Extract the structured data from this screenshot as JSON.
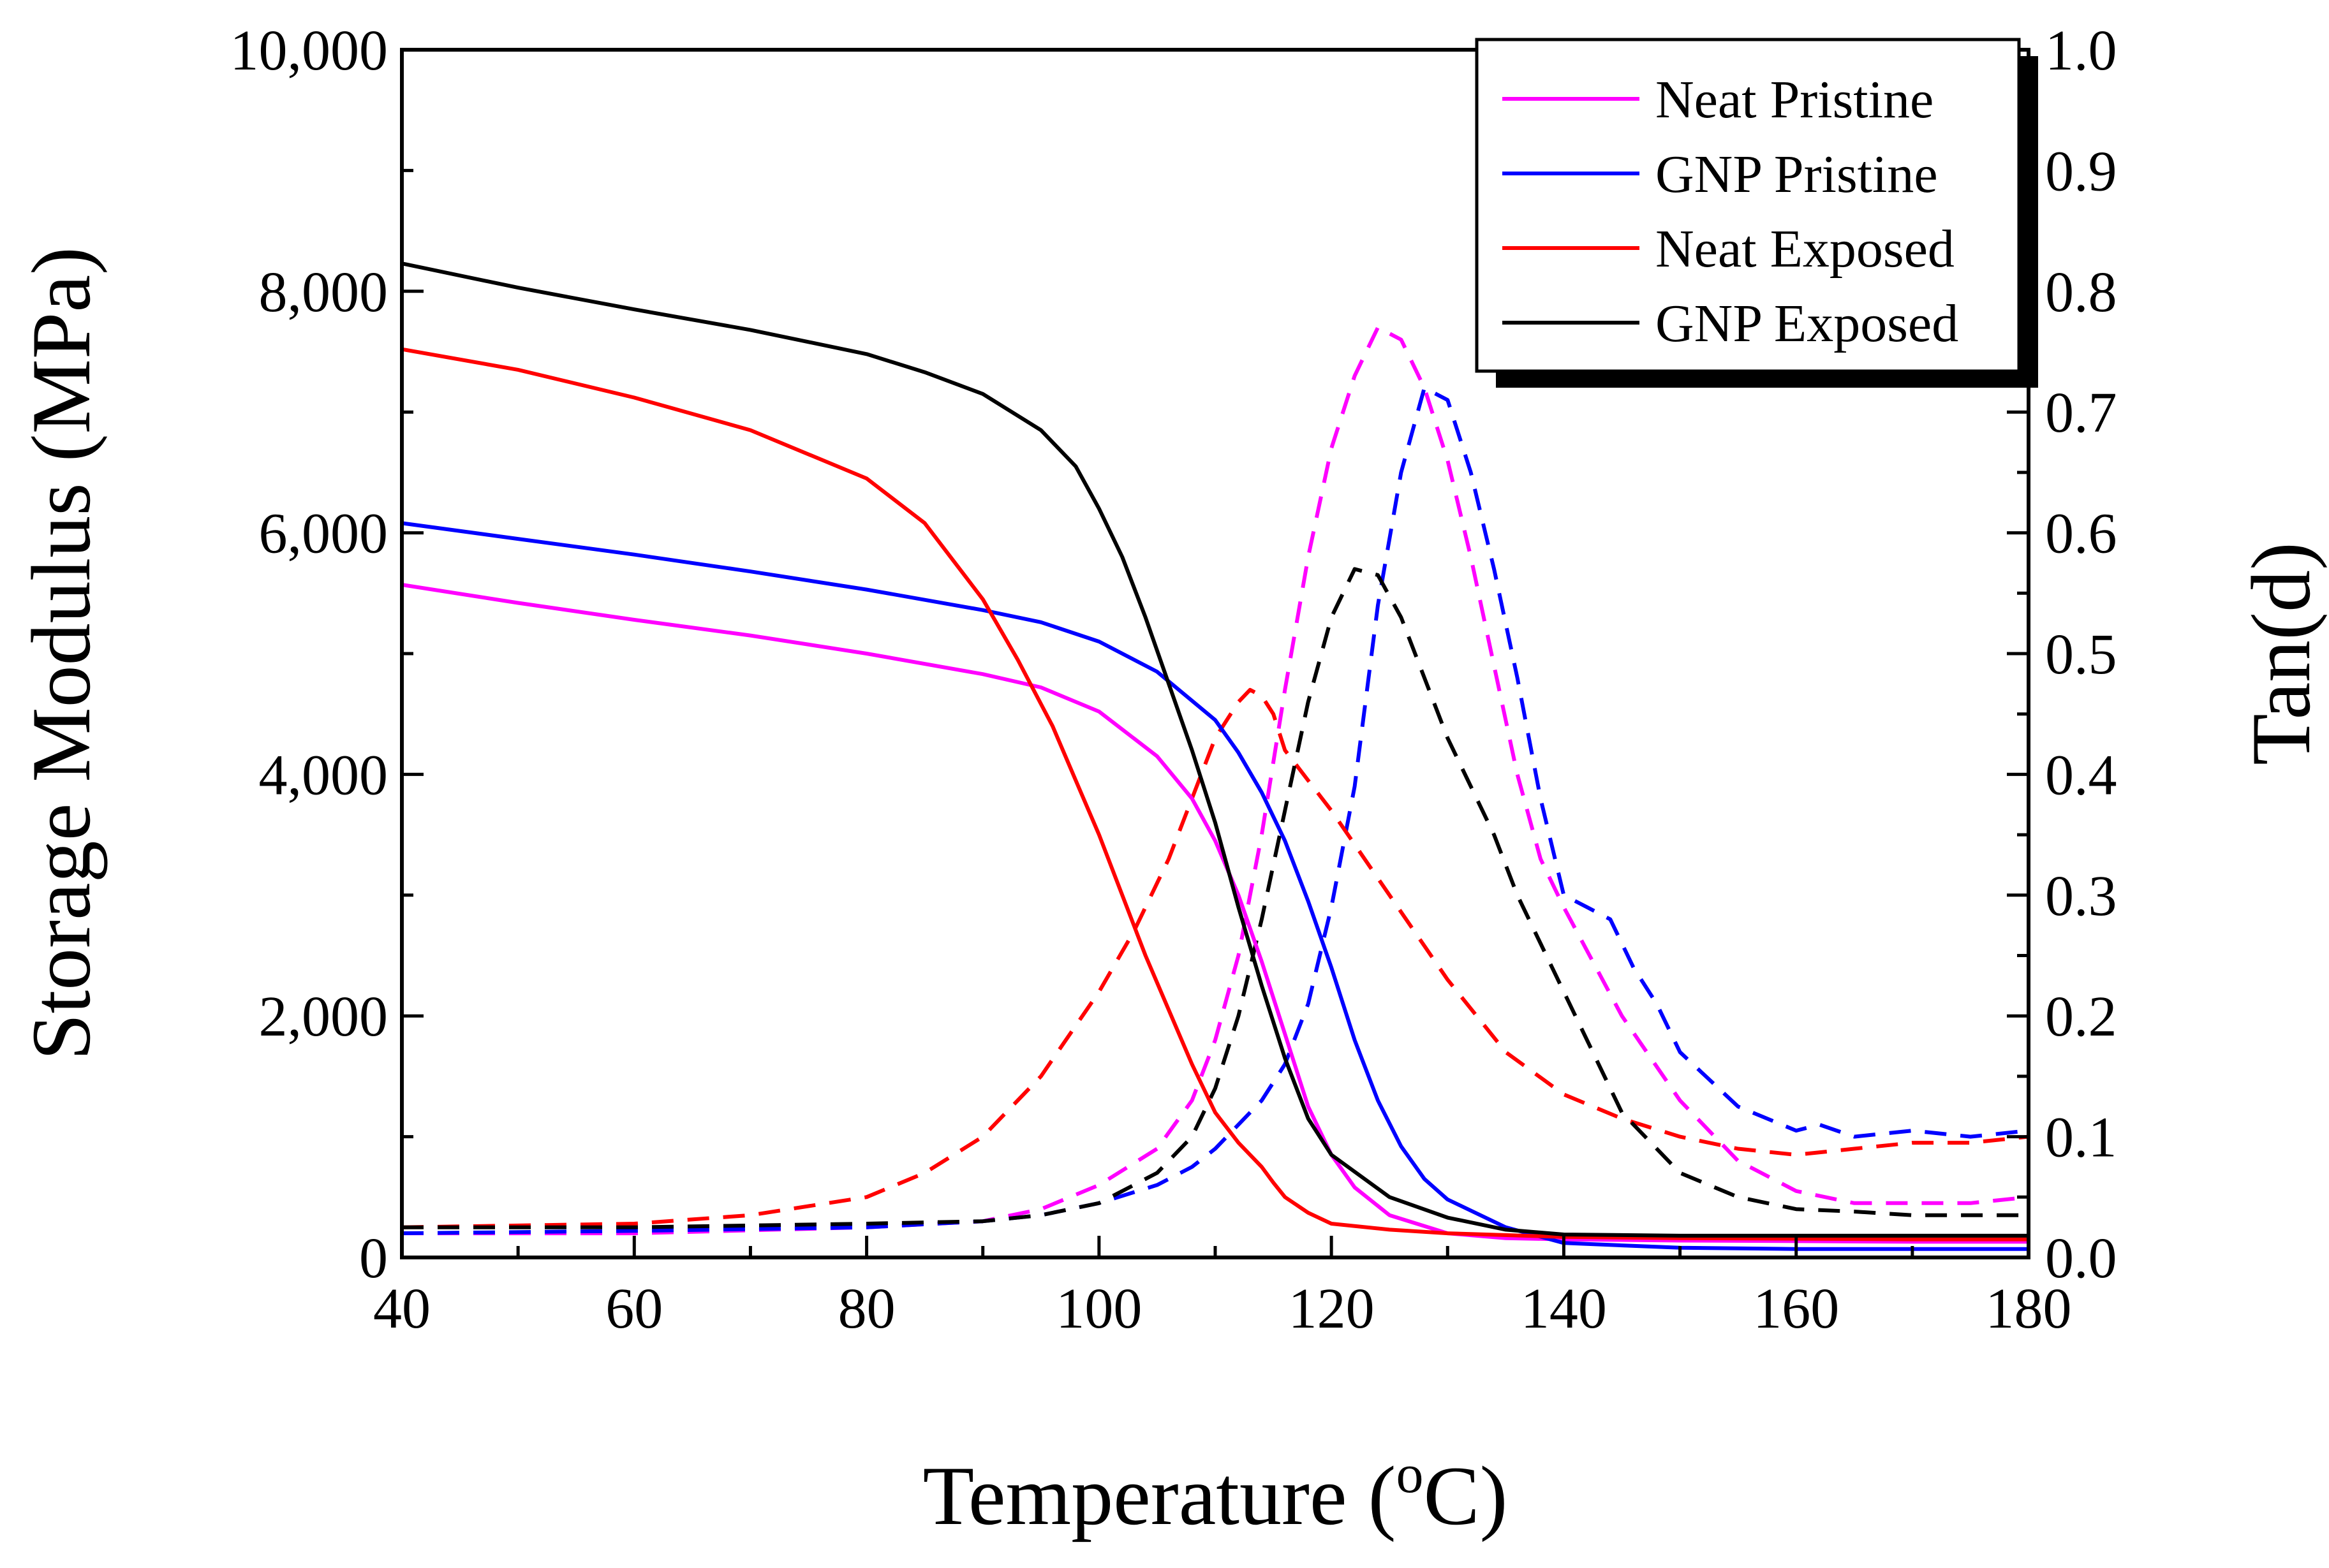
{
  "chart_data": {
    "type": "line",
    "xlabel": "Temperature (",
    "xlabel_sup": "o",
    "xlabel_end": "C)",
    "ylabel_left": "Storage Modulus (MPa)",
    "ylabel_right": "Tan(d)",
    "xlim": [
      40,
      180
    ],
    "ylim_left": [
      0,
      10000
    ],
    "ylim_right": [
      0,
      1.0
    ],
    "x_ticks": [
      40,
      60,
      80,
      100,
      120,
      140,
      160,
      180
    ],
    "x_tick_labels": [
      "40",
      "60",
      "80",
      "100",
      "120",
      "140",
      "160",
      "180"
    ],
    "y_left_ticks": [
      0,
      2000,
      4000,
      6000,
      8000,
      10000
    ],
    "y_left_tick_labels": [
      "0",
      "2,000",
      "4,000",
      "6,000",
      "8,000",
      "10,000"
    ],
    "y_right_ticks": [
      0,
      0.1,
      0.2,
      0.3,
      0.4,
      0.5,
      0.6,
      0.7,
      0.8,
      0.9,
      1.0
    ],
    "y_right_tick_labels": [
      "0.0",
      "0.1",
      "0.2",
      "0.3",
      "0.4",
      "0.5",
      "0.6",
      "0.7",
      "0.8",
      "0.9",
      "1.0"
    ],
    "legend_position": "top-right",
    "series": [
      {
        "name": "Neat Pristine",
        "color": "#ff00ff",
        "storage_modulus": {
          "x": [
            40,
            50,
            60,
            70,
            80,
            90,
            95,
            100,
            105,
            108,
            110,
            112,
            114,
            116,
            118,
            120,
            122,
            125,
            130,
            135,
            140,
            150,
            160,
            170,
            180
          ],
          "y": [
            5570,
            5420,
            5280,
            5150,
            5000,
            4830,
            4720,
            4520,
            4150,
            3800,
            3450,
            3000,
            2450,
            1850,
            1250,
            850,
            580,
            350,
            200,
            160,
            150,
            140,
            135,
            130,
            130
          ]
        },
        "tan_delta": {
          "x": [
            40,
            60,
            80,
            90,
            95,
            100,
            105,
            108,
            110,
            112,
            114,
            116,
            118,
            120,
            122,
            124,
            126,
            128,
            130,
            132,
            134,
            136,
            138,
            140,
            145,
            150,
            155,
            160,
            165,
            170,
            175,
            180
          ],
          "y": [
            0.02,
            0.02,
            0.025,
            0.03,
            0.04,
            0.06,
            0.09,
            0.13,
            0.18,
            0.25,
            0.35,
            0.47,
            0.58,
            0.67,
            0.73,
            0.77,
            0.76,
            0.72,
            0.66,
            0.58,
            0.49,
            0.4,
            0.33,
            0.29,
            0.2,
            0.13,
            0.08,
            0.055,
            0.045,
            0.045,
            0.045,
            0.05
          ]
        }
      },
      {
        "name": "GNP Pristine",
        "color": "#0000ff",
        "storage_modulus": {
          "x": [
            40,
            50,
            60,
            70,
            80,
            90,
            95,
            100,
            105,
            110,
            112,
            114,
            116,
            118,
            120,
            122,
            124,
            126,
            128,
            130,
            135,
            140,
            150,
            160,
            170,
            180
          ],
          "y": [
            6080,
            5950,
            5820,
            5680,
            5530,
            5360,
            5260,
            5100,
            4850,
            4450,
            4180,
            3850,
            3450,
            2950,
            2400,
            1800,
            1300,
            920,
            650,
            480,
            250,
            120,
            80,
            70,
            70,
            70
          ]
        },
        "tan_delta": {
          "x": [
            40,
            60,
            80,
            90,
            95,
            100,
            105,
            108,
            110,
            112,
            114,
            116,
            118,
            120,
            122,
            124,
            126,
            128,
            130,
            132,
            134,
            136,
            138,
            140,
            142,
            144,
            146,
            148,
            150,
            155,
            160,
            162,
            165,
            170,
            175,
            180
          ],
          "y": [
            0.02,
            0.022,
            0.025,
            0.03,
            0.035,
            0.045,
            0.06,
            0.075,
            0.09,
            0.11,
            0.13,
            0.16,
            0.21,
            0.29,
            0.39,
            0.54,
            0.65,
            0.72,
            0.71,
            0.65,
            0.57,
            0.48,
            0.38,
            0.3,
            0.29,
            0.28,
            0.24,
            0.21,
            0.17,
            0.125,
            0.105,
            0.11,
            0.1,
            0.105,
            0.1,
            0.105
          ]
        }
      },
      {
        "name": "Neat Exposed",
        "color": "#ff0000",
        "storage_modulus": {
          "x": [
            40,
            50,
            60,
            70,
            80,
            85,
            90,
            93,
            96,
            98,
            100,
            102,
            104,
            106,
            108,
            110,
            112,
            114,
            115,
            116,
            118,
            120,
            125,
            130,
            140,
            150,
            160,
            170,
            180
          ],
          "y": [
            7520,
            7350,
            7120,
            6850,
            6450,
            6080,
            5450,
            4950,
            4400,
            3950,
            3500,
            3000,
            2500,
            2050,
            1600,
            1200,
            950,
            750,
            620,
            500,
            370,
            280,
            230,
            200,
            170,
            160,
            155,
            150,
            150
          ]
        },
        "tan_delta": {
          "x": [
            40,
            60,
            70,
            80,
            85,
            90,
            95,
            100,
            103,
            106,
            108,
            110,
            112,
            113,
            114,
            115,
            116,
            118,
            120,
            125,
            130,
            135,
            140,
            145,
            150,
            155,
            160,
            165,
            170,
            175,
            180
          ],
          "y": [
            0.025,
            0.028,
            0.035,
            0.05,
            0.07,
            0.1,
            0.15,
            0.22,
            0.27,
            0.33,
            0.38,
            0.43,
            0.46,
            0.47,
            0.465,
            0.45,
            0.42,
            0.395,
            0.37,
            0.3,
            0.23,
            0.17,
            0.135,
            0.115,
            0.1,
            0.09,
            0.085,
            0.09,
            0.095,
            0.095,
            0.1
          ]
        }
      },
      {
        "name": "GNP Exposed",
        "color": "#000000",
        "storage_modulus": {
          "x": [
            40,
            50,
            60,
            70,
            80,
            85,
            90,
            95,
            98,
            100,
            102,
            104,
            106,
            108,
            110,
            112,
            114,
            116,
            118,
            120,
            125,
            130,
            135,
            140,
            150,
            160,
            170,
            180
          ],
          "y": [
            8230,
            8030,
            7850,
            7680,
            7480,
            7330,
            7150,
            6850,
            6550,
            6200,
            5800,
            5300,
            4750,
            4200,
            3600,
            2900,
            2250,
            1650,
            1150,
            850,
            500,
            330,
            230,
            190,
            180,
            180,
            180,
            180
          ]
        },
        "tan_delta": {
          "x": [
            40,
            60,
            80,
            90,
            95,
            100,
            105,
            108,
            110,
            112,
            114,
            116,
            118,
            120,
            122,
            124,
            126,
            128,
            130,
            132,
            134,
            136,
            138,
            140,
            145,
            150,
            155,
            160,
            165,
            170,
            175,
            180
          ],
          "y": [
            0.025,
            0.025,
            0.028,
            0.03,
            0.035,
            0.045,
            0.07,
            0.1,
            0.14,
            0.2,
            0.28,
            0.37,
            0.46,
            0.53,
            0.57,
            0.565,
            0.53,
            0.48,
            0.43,
            0.39,
            0.35,
            0.3,
            0.26,
            0.22,
            0.12,
            0.07,
            0.05,
            0.04,
            0.038,
            0.035,
            0.035,
            0.035
          ]
        }
      }
    ]
  }
}
